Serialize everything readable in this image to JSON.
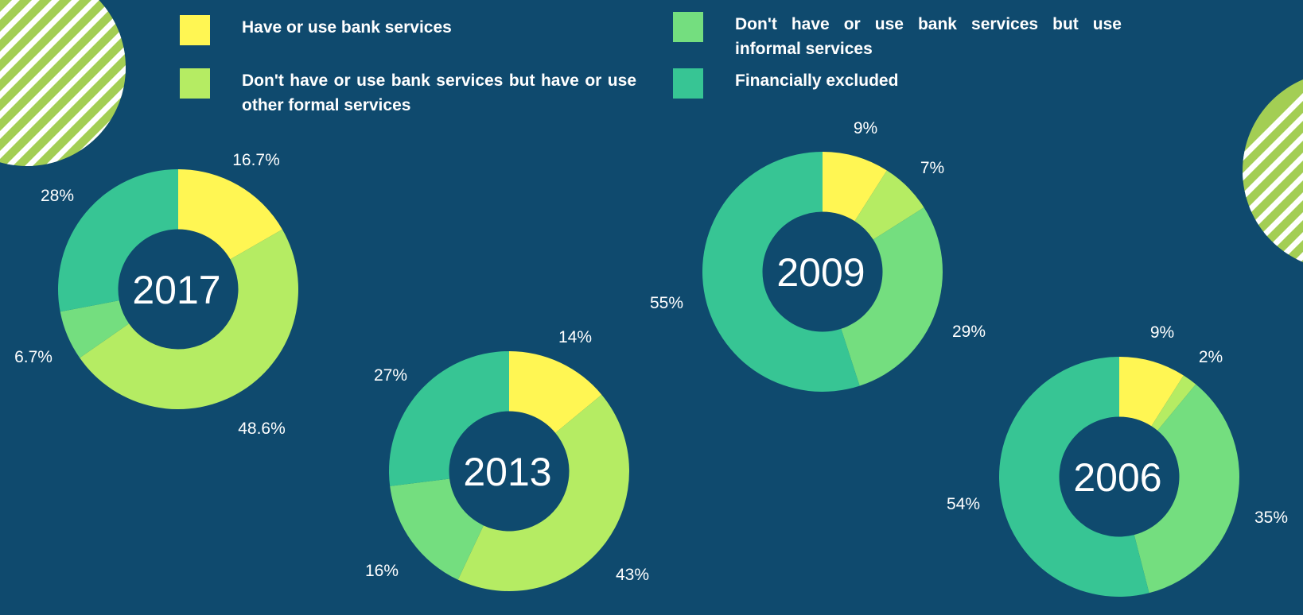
{
  "colors": {
    "background": "#0f4a6e",
    "bank": "#fff653",
    "other_formal": "#b5ec63",
    "informal": "#74de7f",
    "excluded": "#37c594",
    "decor_green": "#a3ce54",
    "text": "#ffffff"
  },
  "legend": [
    {
      "label": "Have or use bank services",
      "color": "#fff653"
    },
    {
      "label": "Don't have or use bank services but have or use other formal services",
      "color": "#b5ec63"
    },
    {
      "label": "Don't have or use bank services but use informal services",
      "color": "#74de7f"
    },
    {
      "label": "Financially excluded",
      "color": "#37c594"
    }
  ],
  "chart_data": [
    {
      "type": "pie",
      "title": "2017",
      "categories": [
        "Have or use bank services",
        "Don't have or use bank services but have or use other formal services",
        "Don't have or use bank services but use informal services",
        "Financially excluded"
      ],
      "values": [
        16.7,
        48.6,
        6.7,
        28
      ],
      "labels": [
        "16.7%",
        "48.6%",
        "6.7%",
        "28%"
      ],
      "colors": [
        "#fff653",
        "#b5ec63",
        "#74de7f",
        "#37c594"
      ],
      "hole": 0.5
    },
    {
      "type": "pie",
      "title": "2013",
      "categories": [
        "Have or use bank services",
        "Don't have or use bank services but have or use other formal services",
        "Don't have or use bank services but use informal services",
        "Financially excluded"
      ],
      "values": [
        14,
        43,
        16,
        27
      ],
      "labels": [
        "14%",
        "43%",
        "16%",
        "27%"
      ],
      "colors": [
        "#fff653",
        "#b5ec63",
        "#74de7f",
        "#37c594"
      ],
      "hole": 0.5
    },
    {
      "type": "pie",
      "title": "2009",
      "categories": [
        "Have or use bank services",
        "Don't have or use bank services but have or use other formal services",
        "Don't have or use bank services but use informal services",
        "Financially excluded"
      ],
      "values": [
        9,
        7,
        29,
        55
      ],
      "labels": [
        "9%",
        "7%",
        "29%",
        "55%"
      ],
      "colors": [
        "#fff653",
        "#b5ec63",
        "#74de7f",
        "#37c594"
      ],
      "hole": 0.5
    },
    {
      "type": "pie",
      "title": "2006",
      "categories": [
        "Have or use bank services",
        "Don't have or use bank services but have or use other formal services",
        "Don't have or use bank services but use informal services",
        "Financially excluded"
      ],
      "values": [
        9,
        2,
        35,
        54
      ],
      "labels": [
        "9%",
        "2%",
        "35%",
        "54%"
      ],
      "colors": [
        "#fff653",
        "#b5ec63",
        "#74de7f",
        "#37c594"
      ],
      "hole": 0.5
    }
  ]
}
